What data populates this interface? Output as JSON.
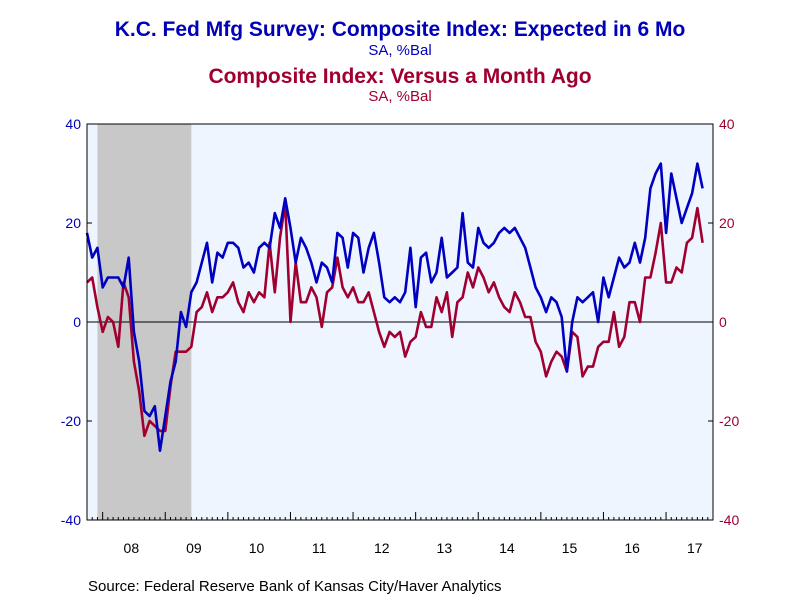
{
  "header": {
    "title": "K.C. Fed Mfg Survey: Composite Index: Expected in 6 Mo",
    "title_units": "SA, %Bal",
    "subtitle": "Composite Index: Versus a Month Ago",
    "subtitle_units": "SA, %Bal"
  },
  "footer": {
    "source": "Source:  Federal Reserve Bank of Kansas City/Haver Analytics"
  },
  "colors": {
    "expected": "#0000c0",
    "current": "#a00030",
    "recession": "#c8c8c8",
    "plot_bg": "#eef5ff"
  },
  "chart_data": {
    "type": "line",
    "x_start": "2007-10",
    "frequency": "monthly",
    "xlim": [
      "2007-10",
      "2017-10"
    ],
    "ylim": [
      -40,
      40
    ],
    "yticks": [
      40,
      20,
      0,
      -20,
      -40
    ],
    "xtick_labels": [
      "08",
      "09",
      "10",
      "11",
      "12",
      "13",
      "14",
      "15",
      "16",
      "17"
    ],
    "recession_shading": [
      "2007-12",
      "2009-06"
    ],
    "zero_line": true,
    "series": [
      {
        "name": "Composite Index: Expected in 6 Mo",
        "axis": "left",
        "color": "#0000c0",
        "values": [
          18,
          13,
          15,
          7,
          9,
          9,
          9,
          7,
          13,
          -2,
          -8,
          -18,
          -19,
          -17,
          -26,
          -19,
          -12,
          -8,
          2,
          -1,
          6,
          8,
          12,
          16,
          8,
          14,
          13,
          16,
          16,
          15,
          11,
          12,
          10,
          15,
          16,
          15,
          22,
          19,
          25,
          19,
          12,
          17,
          15,
          12,
          8,
          12,
          11,
          8,
          18,
          17,
          11,
          18,
          17,
          10,
          15,
          18,
          12,
          5,
          4,
          5,
          4,
          6,
          15,
          3,
          13,
          14,
          8,
          10,
          17,
          9,
          10,
          11,
          22,
          12,
          11,
          19,
          16,
          15,
          16,
          18,
          19,
          18,
          19,
          17,
          15,
          11,
          7,
          5,
          2,
          5,
          4,
          1,
          -10,
          0,
          5,
          4,
          5,
          6,
          0,
          9,
          5,
          9,
          13,
          11,
          12,
          16,
          12,
          17,
          27,
          30,
          32,
          18,
          30,
          25,
          20,
          23,
          26,
          32,
          27
        ]
      },
      {
        "name": "Composite Index: Versus a Month Ago",
        "axis": "right",
        "color": "#a00030",
        "values": [
          8,
          9,
          3,
          -2,
          1,
          0,
          -5,
          8,
          5,
          -8,
          -14,
          -23,
          -20,
          -21,
          -22,
          -22,
          -13,
          -6,
          -6,
          -6,
          -5,
          2,
          3,
          6,
          2,
          5,
          5,
          6,
          8,
          4,
          2,
          6,
          4,
          6,
          5,
          16,
          6,
          17,
          24,
          0,
          12,
          4,
          4,
          7,
          5,
          -1,
          6,
          7,
          13,
          7,
          5,
          7,
          4,
          4,
          6,
          2,
          -2,
          -5,
          -2,
          -3,
          -2,
          -7,
          -4,
          -3,
          2,
          -1,
          -1,
          5,
          2,
          6,
          -3,
          4,
          5,
          10,
          7,
          11,
          9,
          6,
          8,
          5,
          3,
          2,
          6,
          4,
          1,
          1,
          -4,
          -6,
          -11,
          -8,
          -6,
          -7,
          -10,
          -2,
          -3,
          -11,
          -9,
          -9,
          -5,
          -4,
          -4,
          2,
          -5,
          -3,
          4,
          4,
          0,
          9,
          9,
          14,
          20,
          8,
          8,
          11,
          10,
          16,
          17,
          23,
          16
        ]
      }
    ]
  }
}
